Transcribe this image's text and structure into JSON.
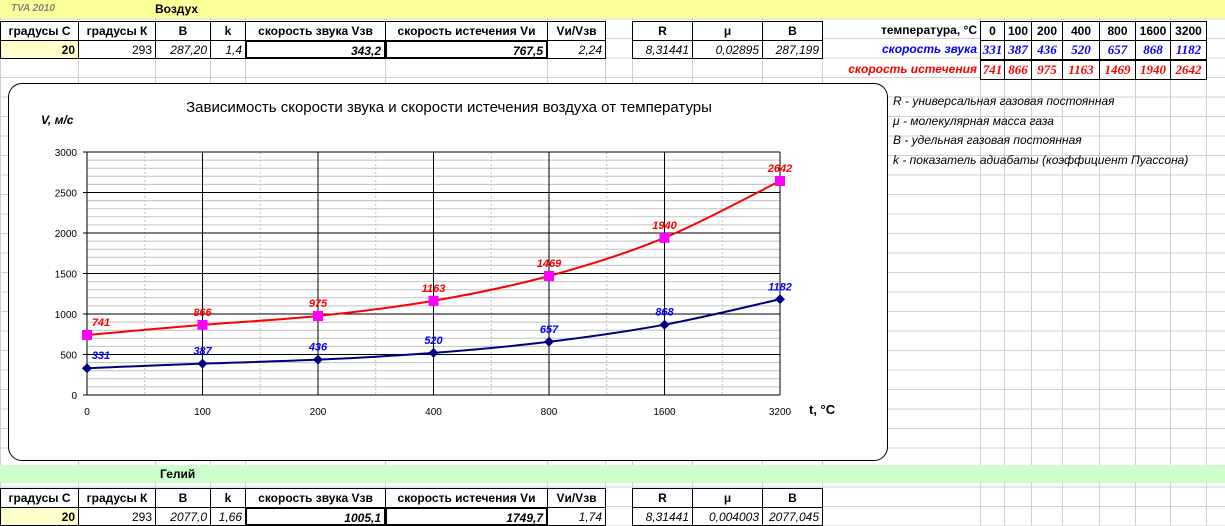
{
  "header": {
    "brand": "TVA 2010",
    "title": "Воздух"
  },
  "air_table": {
    "headers": [
      "градусы С",
      "градусы К",
      "B",
      "k",
      "скорость звука Vзв",
      "скорость истечения Vи",
      "Vи/Vзв",
      "R",
      "μ",
      "B"
    ],
    "row": [
      "20",
      "293",
      "287,20",
      "1,4",
      "343,2",
      "767,5",
      "2,24",
      "8,31441",
      "0,02895",
      "287,199"
    ]
  },
  "temperature_table": {
    "label": "температура, °C",
    "row_labels": [
      "скорость звука",
      "скорость истечения"
    ]
  },
  "notes": [
    "R - универсальная газовая постоянная",
    "μ - молекулярная масса газа",
    "B - удельная газовая постоянная",
    "k - показатель адиабаты (коэффициент Пуассона)"
  ],
  "chart_data": {
    "type": "line",
    "title": "Зависимость скорости звука и скорости истечения воздуха от температуры",
    "y_label": "V, м/с",
    "x_label": "t, °C",
    "categories": [
      "0",
      "100",
      "200",
      "400",
      "800",
      "1600",
      "3200"
    ],
    "series": [
      {
        "color": "#000080",
        "marker": "diamond",
        "marker_color": "#000080",
        "label_color": "#0000ff",
        "values": [
          331,
          387,
          436,
          520,
          657,
          868,
          1182
        ]
      },
      {
        "color": "#ff0000",
        "marker": "square",
        "marker_color": "#ff00ff",
        "label_color": "#ff0000",
        "values": [
          741,
          866,
          975,
          1163,
          1469,
          1940,
          2642
        ]
      }
    ],
    "ylim": [
      0,
      3000
    ],
    "yticks": [
      0,
      500,
      1000,
      1500,
      2000,
      2500,
      3000
    ],
    "grid": true
  },
  "helium": {
    "title": "Гелий",
    "headers": [
      "градусы С",
      "градусы К",
      "B",
      "k",
      "скорость звука Vзв",
      "скорость истечения Vи",
      "Vи/Vзв",
      "R",
      "μ",
      "B"
    ],
    "row": [
      "20",
      "293",
      "2077,0",
      "1,66",
      "1005,1",
      "1749,7",
      "1,74",
      "8,31441",
      "0,004003",
      "2077,045"
    ]
  }
}
